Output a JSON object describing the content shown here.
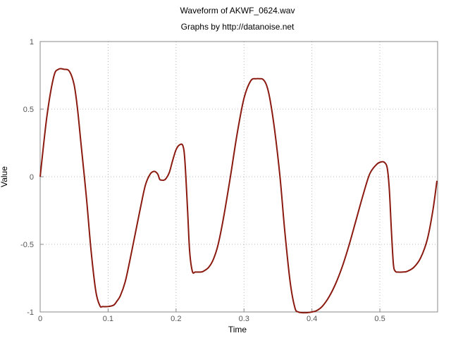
{
  "chart_data": {
    "type": "line",
    "title": "Waveform of AKWF_0624.wav",
    "subtitle": "Graphs by http://datanoise.net",
    "xlabel": "Time",
    "ylabel": "Value",
    "xlim": [
      0,
      0.585
    ],
    "ylim": [
      -1,
      1
    ],
    "xticks": [
      0,
      0.1,
      0.2,
      0.3,
      0.4,
      0.5
    ],
    "xtick_labels": [
      "0",
      "0.1",
      "0.2",
      "0.3",
      "0.4",
      "0.5"
    ],
    "yticks": [
      -1,
      -0.5,
      0,
      0.5,
      1
    ],
    "ytick_labels": [
      "-1",
      "-0.5",
      "0",
      "0.5",
      "1"
    ],
    "grid": true,
    "line_color": "#8b1a10",
    "series": [
      {
        "x": [
          0.0,
          0.01,
          0.02,
          0.027,
          0.035,
          0.043,
          0.05,
          0.055,
          0.06,
          0.068,
          0.075,
          0.082,
          0.088,
          0.092,
          0.1,
          0.108,
          0.113,
          0.118,
          0.125,
          0.132,
          0.14,
          0.148,
          0.155,
          0.162,
          0.168,
          0.173,
          0.176,
          0.179,
          0.182,
          0.185,
          0.19,
          0.195,
          0.2,
          0.205,
          0.21,
          0.213,
          0.217,
          0.22,
          0.224,
          0.228,
          0.232,
          0.236,
          0.24,
          0.248,
          0.255,
          0.262,
          0.27,
          0.28,
          0.29,
          0.3,
          0.31,
          0.318,
          0.323,
          0.328,
          0.333,
          0.338,
          0.345,
          0.353,
          0.36,
          0.368,
          0.375,
          0.38,
          0.385,
          0.393,
          0.4,
          0.407,
          0.415,
          0.425,
          0.435,
          0.445,
          0.455,
          0.465,
          0.475,
          0.485,
          0.495,
          0.502,
          0.507,
          0.511,
          0.514,
          0.517,
          0.52,
          0.523,
          0.527,
          0.533,
          0.54,
          0.55,
          0.56,
          0.57,
          0.578,
          0.584
        ],
        "y": [
          0.0,
          0.45,
          0.74,
          0.795,
          0.795,
          0.78,
          0.68,
          0.5,
          0.25,
          -0.15,
          -0.55,
          -0.85,
          -0.955,
          -0.96,
          -0.96,
          -0.95,
          -0.92,
          -0.88,
          -0.78,
          -0.62,
          -0.42,
          -0.22,
          -0.06,
          0.02,
          0.04,
          0.02,
          -0.02,
          -0.025,
          -0.025,
          -0.015,
          0.03,
          0.12,
          0.2,
          0.235,
          0.23,
          0.12,
          -0.25,
          -0.55,
          -0.7,
          -0.705,
          -0.705,
          -0.705,
          -0.7,
          -0.67,
          -0.61,
          -0.5,
          -0.3,
          0.0,
          0.32,
          0.58,
          0.71,
          0.725,
          0.725,
          0.72,
          0.68,
          0.58,
          0.35,
          0.0,
          -0.4,
          -0.78,
          -0.97,
          -1.0,
          -1.005,
          -1.005,
          -1.0,
          -0.99,
          -0.96,
          -0.89,
          -0.79,
          -0.66,
          -0.5,
          -0.32,
          -0.14,
          0.02,
          0.09,
          0.11,
          0.105,
          0.06,
          -0.1,
          -0.4,
          -0.65,
          -0.7,
          -0.705,
          -0.705,
          -0.7,
          -0.67,
          -0.6,
          -0.46,
          -0.25,
          -0.03
        ]
      }
    ]
  }
}
